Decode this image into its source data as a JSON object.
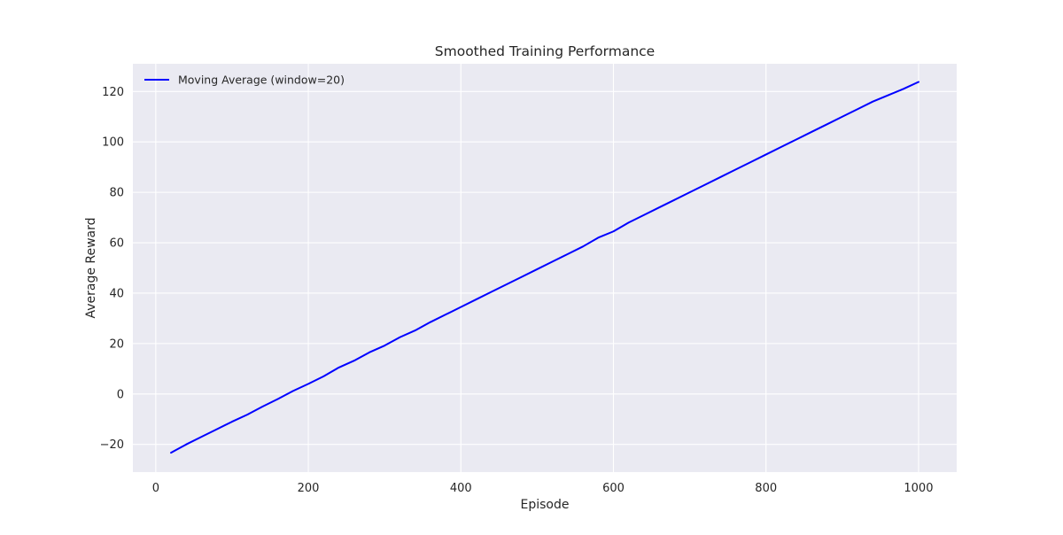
{
  "chart_data": {
    "type": "line",
    "title": "Smoothed Training Performance",
    "xlabel": "Episode",
    "ylabel": "Average Reward",
    "xlim": [
      -30,
      1050
    ],
    "ylim": [
      -31,
      131
    ],
    "x_ticks": [
      0,
      200,
      400,
      600,
      800,
      1000
    ],
    "y_ticks": [
      -20,
      0,
      20,
      40,
      60,
      80,
      100,
      120
    ],
    "grid": true,
    "legend_position": "top-left",
    "background_color": "#eaeaf2",
    "grid_color": "#ffffff",
    "series": [
      {
        "name": "Moving Average (window=20)",
        "color": "#0000ff",
        "x": [
          20,
          40,
          60,
          80,
          100,
          120,
          140,
          160,
          180,
          200,
          220,
          240,
          260,
          280,
          300,
          320,
          340,
          360,
          380,
          400,
          420,
          440,
          460,
          480,
          500,
          520,
          540,
          560,
          580,
          600,
          620,
          640,
          660,
          680,
          700,
          720,
          740,
          760,
          780,
          800,
          820,
          840,
          860,
          880,
          900,
          920,
          940,
          960,
          980,
          1000
        ],
        "values": [
          -23.3,
          -20.0,
          -17.0,
          -14.0,
          -11.0,
          -8.2,
          -5.0,
          -2.0,
          1.2,
          4.0,
          7.0,
          10.5,
          13.2,
          16.5,
          19.2,
          22.5,
          25.2,
          28.5,
          31.5,
          34.5,
          37.5,
          40.5,
          43.5,
          46.5,
          49.5,
          52.5,
          55.5,
          58.5,
          62.0,
          64.5,
          68.0,
          71.0,
          74.0,
          77.0,
          80.0,
          83.0,
          86.0,
          89.0,
          92.0,
          95.0,
          98.0,
          101.0,
          104.0,
          107.0,
          110.0,
          113.0,
          116.0,
          118.5,
          121.0,
          123.8
        ]
      }
    ]
  }
}
